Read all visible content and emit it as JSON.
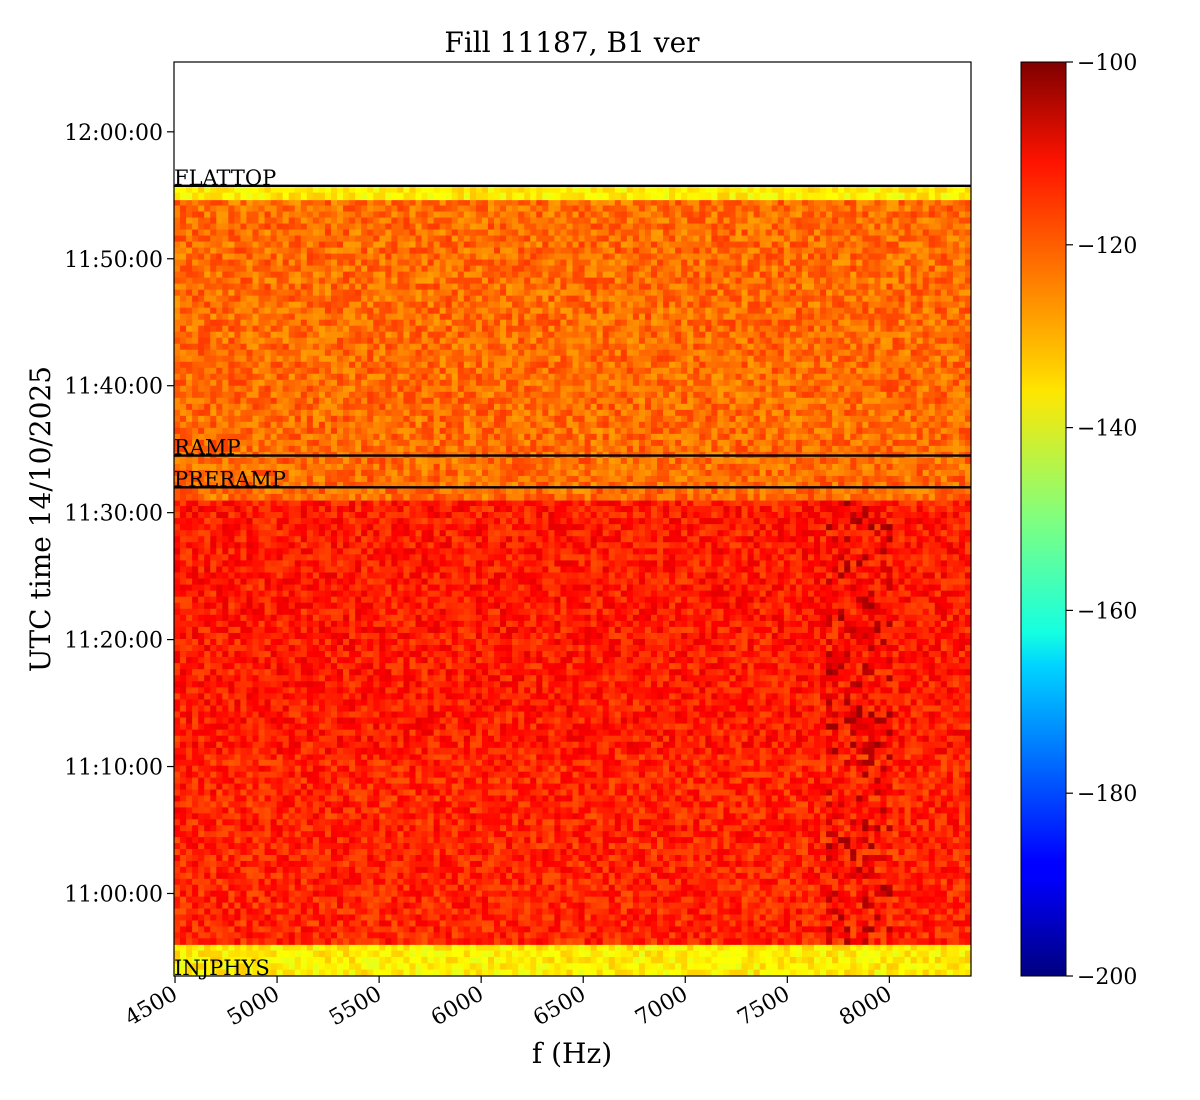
{
  "chart_data": {
    "type": "heatmap",
    "title": "Fill 11187, B1 ver",
    "xlabel": "f (Hz)",
    "ylabel": "UTC time 14/10/2025",
    "xlim": [
      4495,
      8400
    ],
    "x_ticks": [
      4500,
      5000,
      5500,
      6000,
      6500,
      7000,
      7500,
      8000
    ],
    "x_tick_labels": [
      "4500",
      "5000",
      "5500",
      "6000",
      "6500",
      "7000",
      "7500",
      "8000"
    ],
    "ylim": [
      "10:53:30",
      "12:05:30"
    ],
    "y_ticks": [
      "11:00:00",
      "11:10:00",
      "11:20:00",
      "11:30:00",
      "11:40:00",
      "11:50:00",
      "12:00:00"
    ],
    "y_tick_labels": [
      "11:00:00",
      "11:10:00",
      "11:20:00",
      "11:30:00",
      "11:40:00",
      "11:50:00",
      "12:00:00"
    ],
    "colorbar": {
      "colormap": "jet",
      "range": [
        -200,
        -100
      ],
      "ticks": [
        -200,
        -180,
        -160,
        -140,
        -120,
        -100
      ],
      "tick_labels": [
        "−200",
        "−180",
        "−160",
        "−140",
        "−120",
        "−100"
      ]
    },
    "data_extent": {
      "time": [
        "10:53:30",
        "11:55:45"
      ],
      "freq": [
        4495,
        8400
      ]
    },
    "regions": [
      {
        "time": [
          "10:53:30",
          "10:56:00"
        ],
        "level_db": -136
      },
      {
        "time": [
          "10:56:00",
          "11:11:00"
        ],
        "level_db": -116
      },
      {
        "time": [
          "11:11:00",
          "11:31:00"
        ],
        "level_db": -115
      },
      {
        "time": [
          "11:31:00",
          "11:54:40"
        ],
        "level_db": -123
      },
      {
        "time": [
          "11:54:40",
          "11:55:45"
        ],
        "level_db": -136
      }
    ],
    "phase_markers": [
      {
        "label": "INJPHYS",
        "time": "10:53:30"
      },
      {
        "label": "PRERAMP",
        "time": "11:32:00"
      },
      {
        "label": "RAMP",
        "time": "11:34:30"
      },
      {
        "label": "FLATTOP",
        "time": "11:55:45"
      }
    ]
  }
}
